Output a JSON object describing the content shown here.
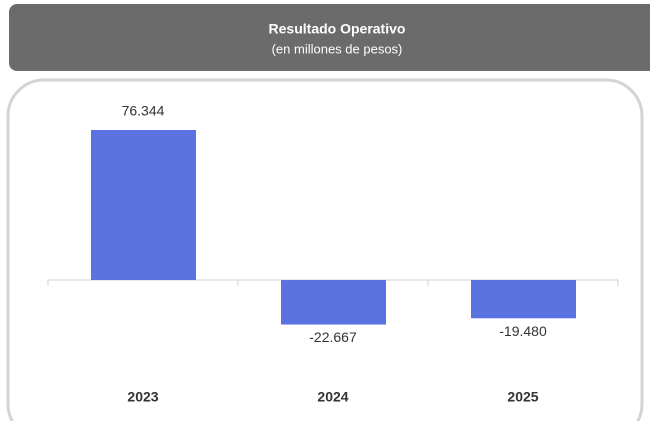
{
  "chart_data": {
    "type": "bar",
    "title": "Resultado Operativo",
    "subtitle": "(en millones de pesos)",
    "categories": [
      "2023",
      "2024",
      "2025"
    ],
    "values": [
      76344,
      -22667,
      -19480
    ],
    "value_labels": [
      "76.344",
      "-22.667",
      "-19.480"
    ],
    "color": "#5b73e0"
  }
}
